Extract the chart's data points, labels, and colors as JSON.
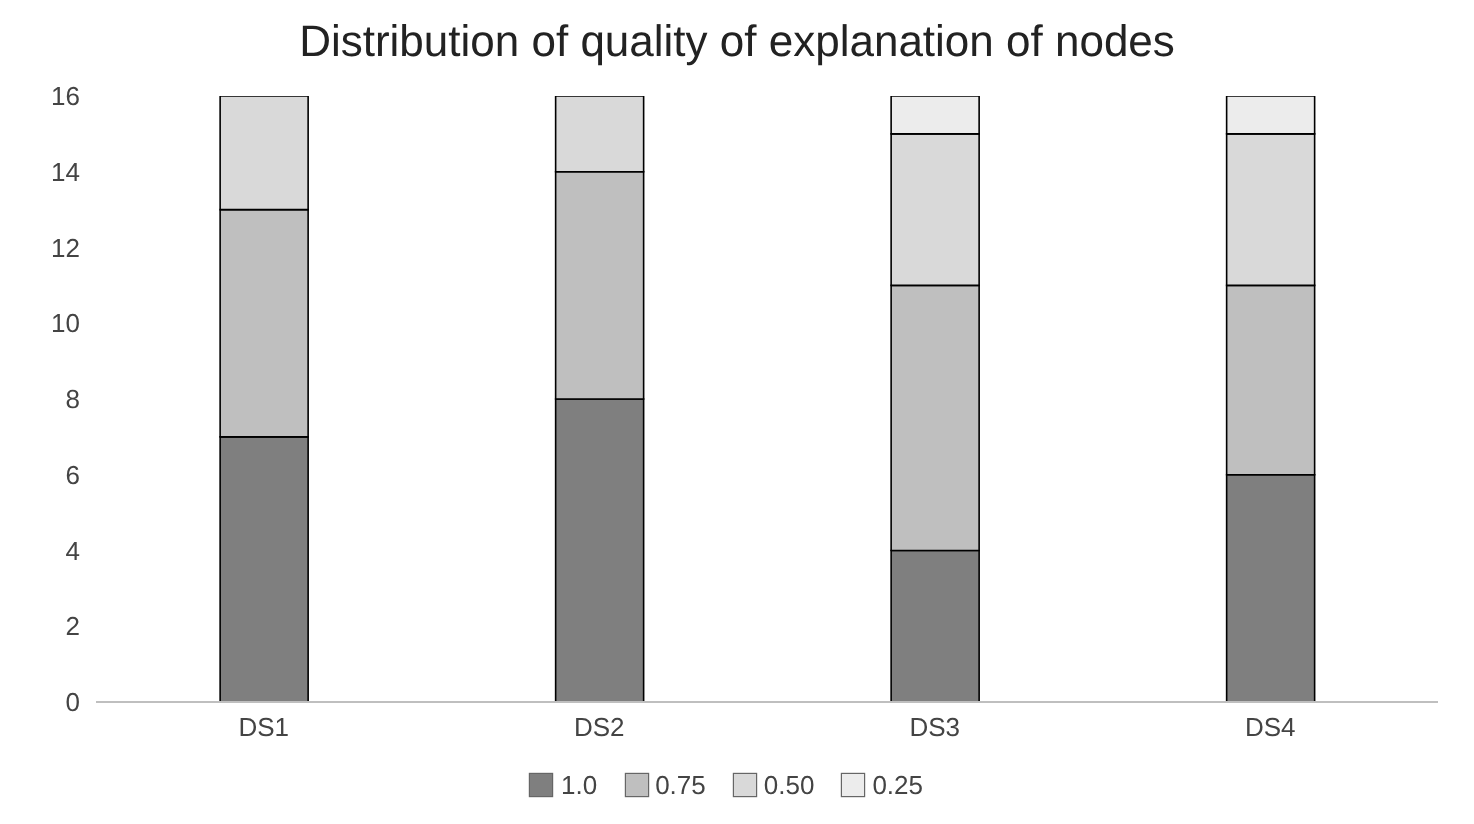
{
  "chart_data": {
    "type": "bar",
    "title": "Distribution of quality of explanation of nodes",
    "categories": [
      "DS1",
      "DS2",
      "DS3",
      "DS4"
    ],
    "stacked": true,
    "series": [
      {
        "name": "1.0",
        "color": "#7f7f7f",
        "values": [
          7,
          8,
          4,
          6
        ]
      },
      {
        "name": "0.75",
        "color": "#bfbfbf",
        "values": [
          6,
          6,
          7,
          5
        ]
      },
      {
        "name": "0.50",
        "color": "#d9d9d9",
        "values": [
          3,
          2,
          4,
          4
        ]
      },
      {
        "name": "0.25",
        "color": "#ececec",
        "values": [
          0,
          0,
          1,
          1
        ]
      }
    ],
    "ylim": [
      0,
      16
    ],
    "yticks": [
      0,
      2,
      4,
      6,
      8,
      10,
      12,
      14,
      16
    ],
    "grid": false,
    "legend": "bottom"
  }
}
